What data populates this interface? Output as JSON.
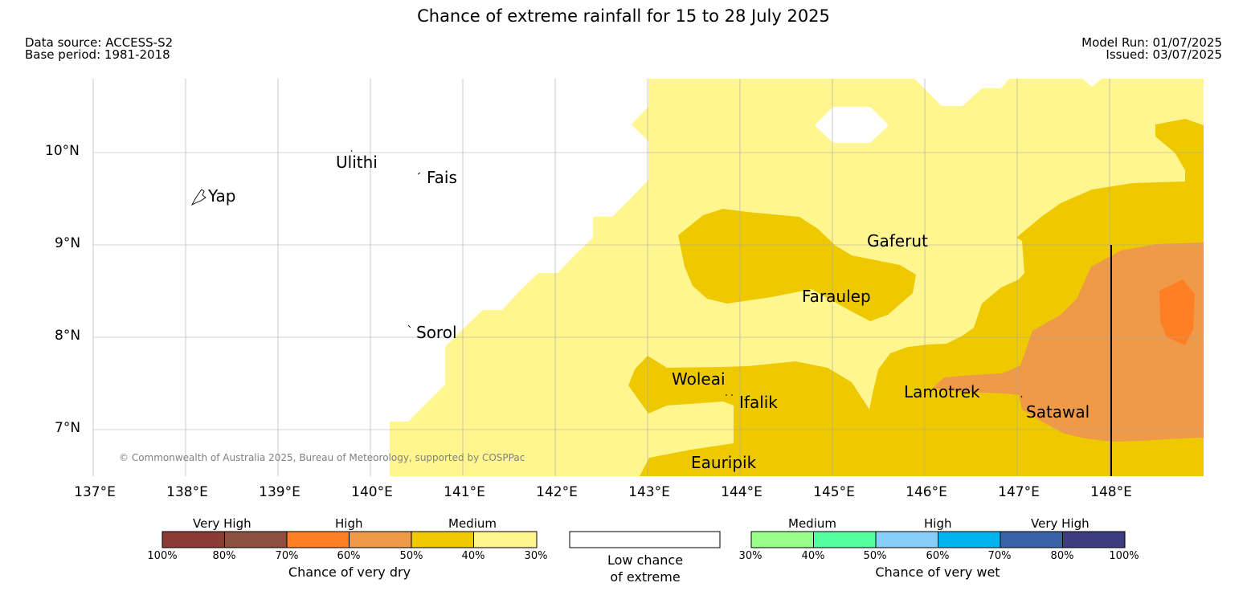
{
  "title": "Chance of extreme rainfall for 15 to 28 July 2025",
  "meta": {
    "data_source": "Data source: ACCESS-S2",
    "base_period": "Base period: 1981-2018",
    "model_run": "Model Run: 01/07/2025",
    "issued": "Issued: 03/07/2025"
  },
  "map": {
    "lat_labels": [
      "10°N",
      "9°N",
      "8°N",
      "7°N"
    ],
    "lon_labels": [
      "137°E",
      "138°E",
      "139°E",
      "140°E",
      "141°E",
      "142°E",
      "143°E",
      "144°E",
      "145°E",
      "146°E",
      "147°E",
      "148°E"
    ],
    "places": [
      "Ulithi",
      "Fais",
      "Yap",
      "Gaferut",
      "Faraulep",
      "Sorol",
      "Woleai",
      "Ifalik",
      "Lamotrek",
      "Satawal",
      "Eauripik"
    ],
    "copyright": "© Commonwealth of Australia 2025, Bureau of Meteorology, supported by COSPPac",
    "colors": {
      "medium_dry_40_30": "#FFF68F",
      "medium_dry_50_40": "#EEC900",
      "high_dry_60_50": "#EE9A49",
      "high_dry_70_60": "#FF7F24"
    }
  },
  "legend": {
    "dry": {
      "headers": [
        "Very High",
        "High",
        "Medium"
      ],
      "ticks": [
        "100%",
        "80%",
        "70%",
        "60%",
        "50%",
        "40%",
        "30%"
      ],
      "colors": [
        "#8B3A35",
        "#8B5040",
        "#FF7F24",
        "#EE9A49",
        "#EEC900",
        "#FFF68F"
      ],
      "caption": "Chance of very dry"
    },
    "low": {
      "caption_line1": "Low chance",
      "caption_line2": "of extreme"
    },
    "wet": {
      "headers": [
        "Medium",
        "High",
        "Very High"
      ],
      "ticks": [
        "30%",
        "40%",
        "50%",
        "60%",
        "70%",
        "80%",
        "100%"
      ],
      "colors": [
        "#9AFF8A",
        "#54FFA0",
        "#87CEFA",
        "#00B2EE",
        "#3A62A8",
        "#3D3C7E"
      ],
      "caption": "Chance of very wet"
    }
  }
}
